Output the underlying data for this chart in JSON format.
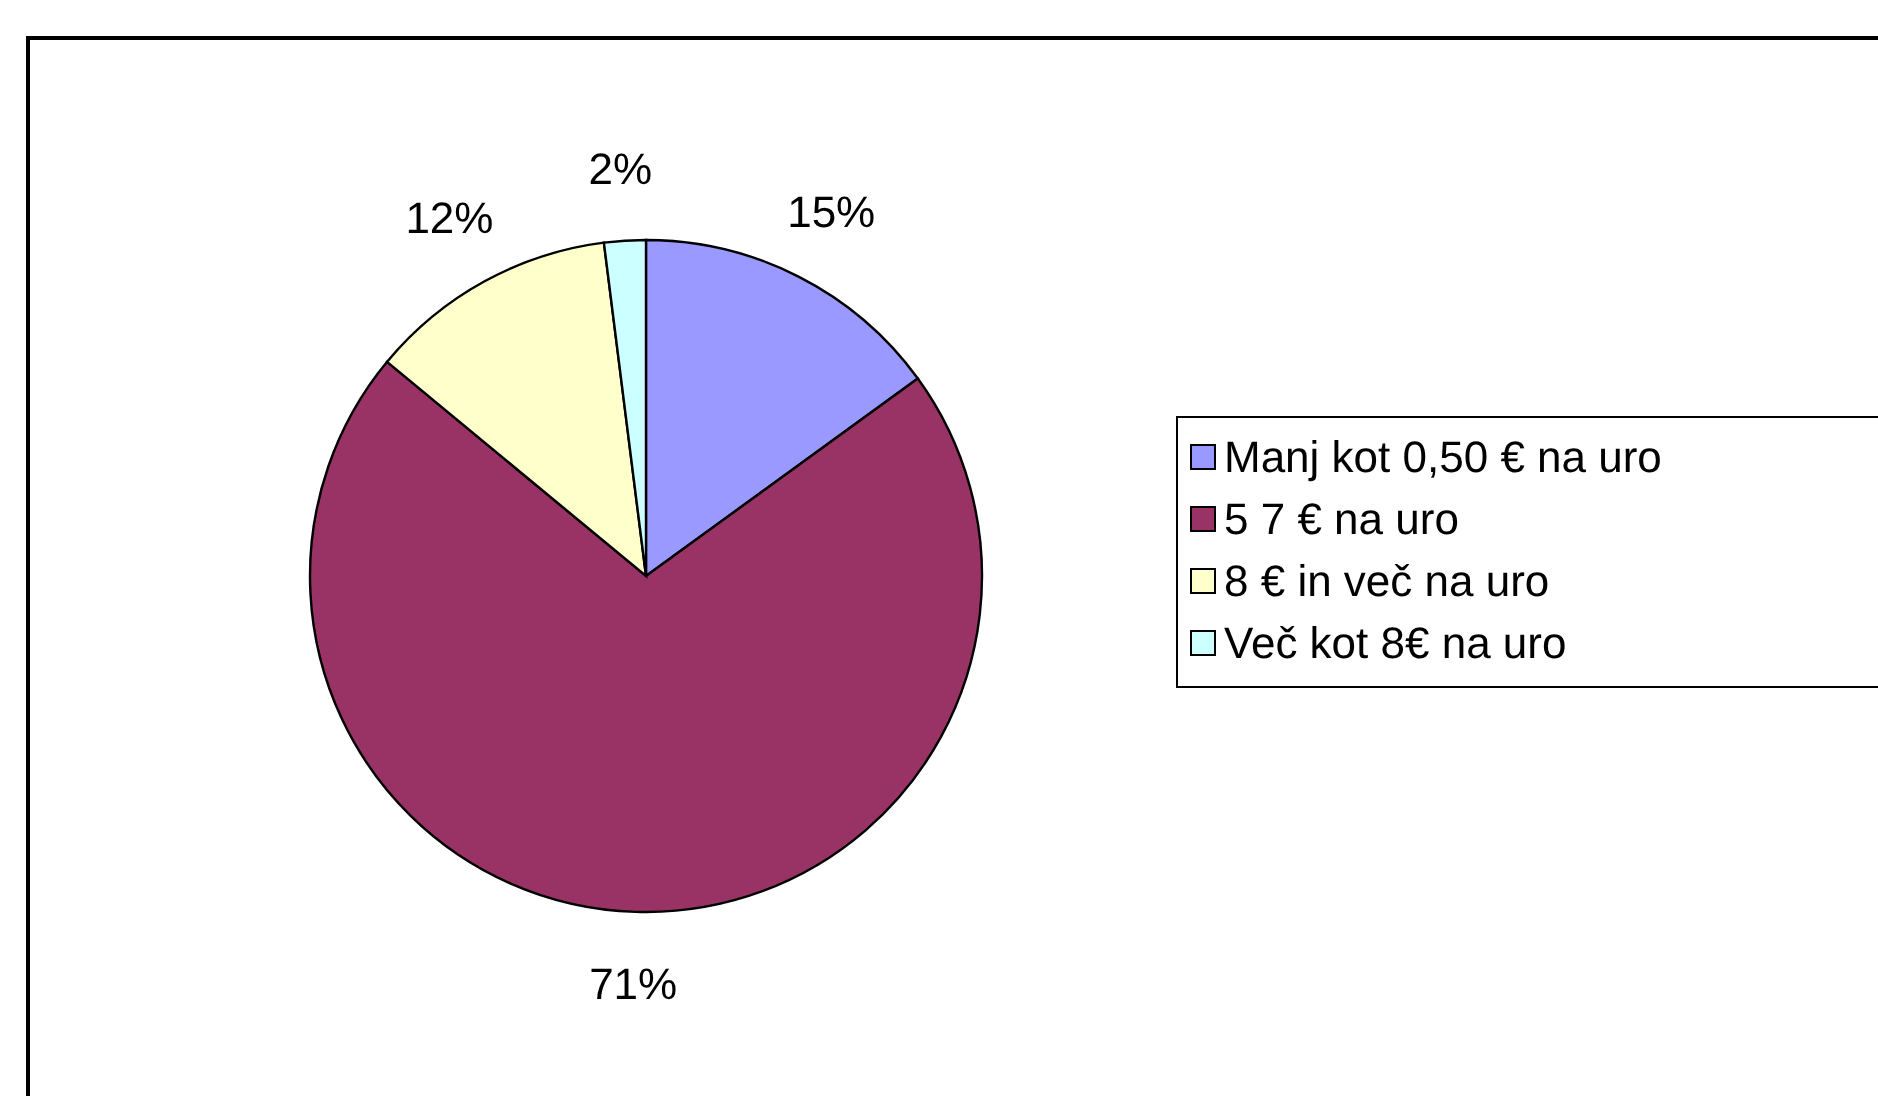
{
  "chart_data": {
    "type": "pie",
    "categories": [
      "Manj kot 0,50 € na uro",
      "5 7 € na uro",
      "8 € in več na uro",
      "Več kot 8€ na uro"
    ],
    "values": [
      15,
      71,
      12,
      2
    ],
    "colors": [
      "#9999ff",
      "#993366",
      "#ffffcc",
      "#ccffff"
    ],
    "value_labels": [
      "15%",
      "71%",
      "12%",
      "2%"
    ],
    "legend": "right"
  }
}
